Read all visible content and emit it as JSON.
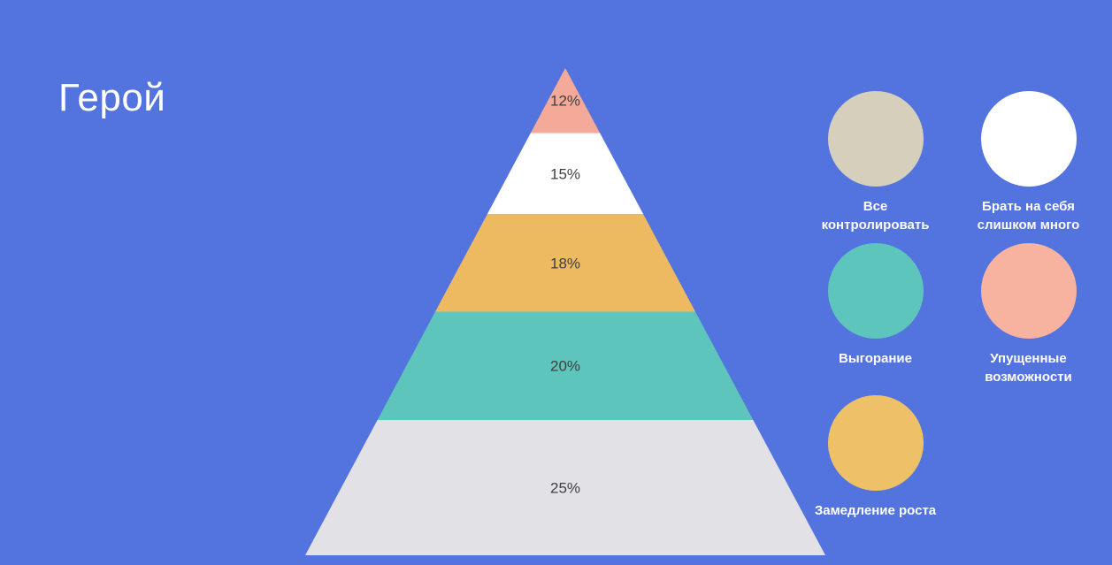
{
  "slide": {
    "title": "Герой",
    "background_color": "#5373de",
    "title_color": "#ffffff"
  },
  "chart_data": {
    "type": "pyramid",
    "title": "Герой",
    "label_color": "#3f3f3f",
    "legend_text_color": "#ffffff",
    "legend_position": "right",
    "levels": [
      {
        "label": "12%",
        "value": 12,
        "color": "#f5a998"
      },
      {
        "label": "15%",
        "value": 15,
        "color": "#ffffff"
      },
      {
        "label": "18%",
        "value": 18,
        "color": "#edba62"
      },
      {
        "label": "20%",
        "value": 20,
        "color": "#5dc5bc"
      },
      {
        "label": "25%",
        "value": 25,
        "color": "#e2e2e6"
      }
    ],
    "legend": [
      {
        "label": "Все\nконтролировать",
        "color": "#d5cfbc"
      },
      {
        "label": "Брать на себя\nслишком много",
        "color": "#ffffff"
      },
      {
        "label": "Выгорание",
        "color": "#5dc5bc"
      },
      {
        "label": "Упущенные\nвозможности",
        "color": "#f8b3a0"
      },
      {
        "label": "Замедление роста",
        "color": "#eec169"
      }
    ]
  }
}
